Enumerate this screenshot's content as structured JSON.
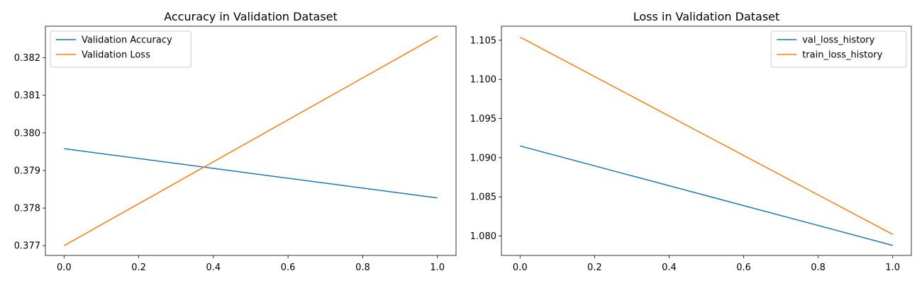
{
  "chart_data": [
    {
      "type": "line",
      "title": "Accuracy in Validation Dataset",
      "xlabel": "",
      "ylabel": "",
      "xlim": [
        -0.05,
        1.05
      ],
      "ylim": [
        0.37674,
        0.38284
      ],
      "xticks": [
        0.0,
        0.2,
        0.4,
        0.6,
        0.8,
        1.0
      ],
      "xtick_labels": [
        "0.0",
        "0.2",
        "0.4",
        "0.6",
        "0.8",
        "1.0"
      ],
      "yticks": [
        0.377,
        0.378,
        0.379,
        0.38,
        0.381,
        0.382
      ],
      "ytick_labels": [
        "0.377",
        "0.378",
        "0.379",
        "0.380",
        "0.381",
        "0.382"
      ],
      "grid": false,
      "legend_position": "top-left",
      "series": [
        {
          "name": "Validation Accuracy",
          "color": "#1f77b4",
          "x": [
            0,
            1
          ],
          "y": [
            0.37958,
            0.37827
          ]
        },
        {
          "name": "Validation Loss",
          "color": "#ff7f0e",
          "x": [
            0,
            1
          ],
          "y": [
            0.377,
            0.38258
          ]
        }
      ]
    },
    {
      "type": "line",
      "title": "Loss in Validation Dataset",
      "xlabel": "",
      "ylabel": "",
      "xlim": [
        -0.05,
        1.05
      ],
      "ylim": [
        1.07752,
        1.1068
      ],
      "xticks": [
        0.0,
        0.2,
        0.4,
        0.6,
        0.8,
        1.0
      ],
      "xtick_labels": [
        "0.0",
        "0.2",
        "0.4",
        "0.6",
        "0.8",
        "1.0"
      ],
      "yticks": [
        1.08,
        1.085,
        1.09,
        1.095,
        1.1,
        1.105
      ],
      "ytick_labels": [
        "1.080",
        "1.085",
        "1.090",
        "1.095",
        "1.100",
        "1.105"
      ],
      "grid": false,
      "legend_position": "top-right",
      "series": [
        {
          "name": "val_loss_history",
          "color": "#1f77b4",
          "x": [
            0,
            1
          ],
          "y": [
            1.0915,
            1.0788
          ]
        },
        {
          "name": "train_loss_history",
          "color": "#ff7f0e",
          "x": [
            0,
            1
          ],
          "y": [
            1.1054,
            1.0802
          ]
        }
      ]
    }
  ]
}
